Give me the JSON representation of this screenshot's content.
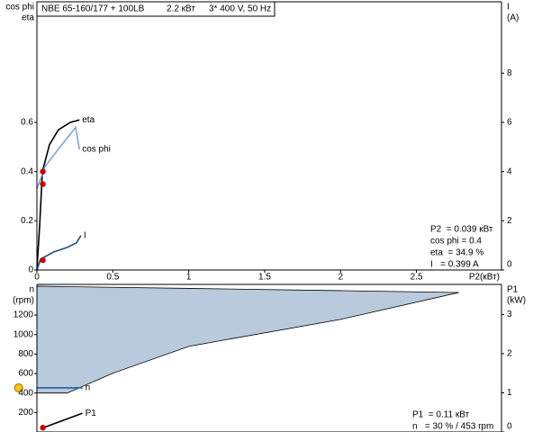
{
  "header": {
    "title": "NBE 65-160/177 + 100LB",
    "power": "2.2 кВт",
    "supply": "3* 400 V, 50 Hz"
  },
  "chart_data": [
    {
      "type": "line",
      "y_label": [
        "cos phi",
        "eta"
      ],
      "y2_label": [
        "I",
        "(A)"
      ],
      "x_label": "P2(кВт)",
      "xlim": [
        0,
        3.06
      ],
      "xticks": [
        0,
        0.5,
        1,
        1.5,
        2,
        2.5
      ],
      "ylim": [
        0,
        1.09
      ],
      "yticks": [
        0,
        0.2,
        0.4,
        0.6
      ],
      "y2lim": [
        0,
        10.9
      ],
      "y2ticks": [
        0,
        2,
        4,
        6,
        8
      ],
      "series": [
        {
          "name": "eta",
          "color": "#000000",
          "x": [
            0,
            0.018,
            0.036,
            0.083,
            0.142,
            0.22,
            0.28
          ],
          "values": [
            0,
            0.18,
            0.4,
            0.51,
            0.57,
            0.6,
            0.61
          ]
        },
        {
          "name": "cos phi",
          "color": "#7fa7cf",
          "x": [
            0,
            0.053,
            0.14,
            0.23,
            0.255,
            0.28
          ],
          "values": [
            0.33,
            0.42,
            0.49,
            0.56,
            0.58,
            0.49
          ]
        },
        {
          "name": "I",
          "color": "#1f4e79",
          "axis": "y2",
          "x": [
            0,
            0.024,
            0.11,
            0.2,
            0.26,
            0.29
          ],
          "values": [
            0,
            0.44,
            0.73,
            0.92,
            1.1,
            1.4
          ]
        }
      ],
      "points": [
        {
          "x": 0.039,
          "y": 0.4,
          "color": "#cc0000"
        },
        {
          "x": 0.039,
          "y": 0.349,
          "color": "#cc0000"
        },
        {
          "x": 0.039,
          "y": 0.399,
          "axis": "y2",
          "color": "#cc0000"
        }
      ],
      "info": [
        "P2  = 0.039 кВт",
        "cos phi = 0.4",
        "eta  = 34.9 %",
        "I   = 0.399 A"
      ]
    },
    {
      "type": "area",
      "y_label": [
        "n",
        "(rpm)"
      ],
      "y2_label": [
        "P1",
        "(kW)"
      ],
      "xlim": [
        0,
        3.06
      ],
      "ylim": [
        0,
        1515
      ],
      "yticks": [
        200,
        400,
        600,
        800,
        1000,
        1200
      ],
      "y2lim": [
        0,
        3.77
      ],
      "y2ticks": [
        0,
        1,
        2,
        3
      ],
      "area": {
        "color": "#b8cadc",
        "x": [
          0,
          0.2,
          0.5,
          1.0,
          2.0,
          2.78
        ],
        "upper": [
          1497,
          1492,
          1485,
          1474,
          1451,
          1432
        ],
        "lower": [
          400,
          400,
          603,
          879,
          1156,
          1432
        ]
      },
      "series": [
        {
          "name": "n",
          "color": "#1f5fa0",
          "x": [
            0,
            0.3
          ],
          "values": [
            453,
            453
          ]
        },
        {
          "name": "P1",
          "color": "#000000",
          "axis": "y2",
          "x": [
            0.036,
            0.3
          ],
          "values": [
            0.1,
            0.48
          ]
        }
      ],
      "points": [
        {
          "x": 0.039,
          "y": 0.11,
          "axis": "y2",
          "color": "#cc0000"
        },
        {
          "x": -0.12,
          "y": 453,
          "color": "#f5c518"
        }
      ],
      "info": [
        "P1  = 0.11 кВт",
        "n   = 30 % / 453 rpm"
      ]
    }
  ]
}
